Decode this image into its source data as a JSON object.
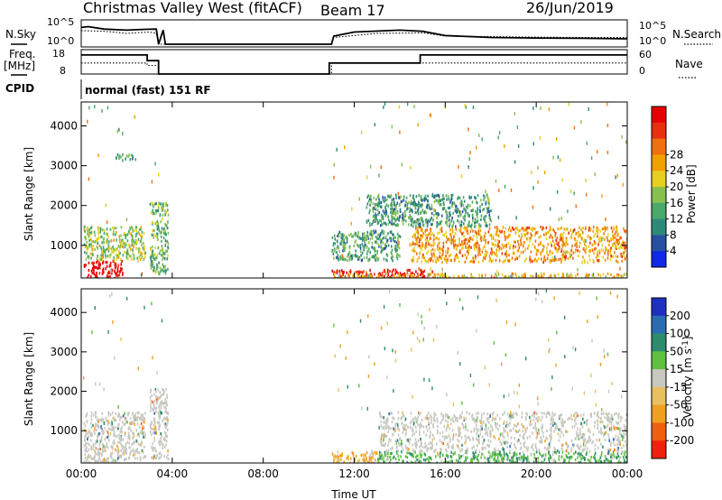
{
  "header": {
    "station": "Christmas Valley West (fitACF)",
    "beam": "Beam 17",
    "date": "26/Jun/2019"
  },
  "panel_labels": {
    "nsky": "N.Sky",
    "freq": "Freq.",
    "freq_unit": "[MHz]",
    "cpid": "CPID",
    "nsearch": "N.Search",
    "nave": "Nave",
    "cpid_text": "normal (fast) 151 RF"
  },
  "chart_data": [
    {
      "type": "line",
      "title": "",
      "name": "noise",
      "ylabel": "N.Sky",
      "ylabel_right": "N.Search",
      "y_ticks_left": [
        "10^5",
        "10^0"
      ],
      "y_ticks_right": [
        "10^5",
        "10^0"
      ],
      "xlim": [
        0,
        24
      ],
      "series": [
        {
          "name": "N.Sky",
          "style": "solid",
          "x": [
            0,
            0.3,
            1,
            2,
            2.8,
            3.3,
            3.4,
            3.6,
            3.7,
            11,
            11.1,
            12,
            14,
            15,
            16,
            18,
            20,
            22,
            24
          ],
          "y": [
            0.72,
            0.75,
            0.66,
            0.62,
            0.65,
            0.66,
            0.1,
            0.62,
            0.1,
            0.1,
            0.4,
            0.55,
            0.62,
            0.58,
            0.42,
            0.35,
            0.33,
            0.32,
            0.3
          ]
        },
        {
          "name": "N.Search",
          "style": "dotted",
          "x": [
            0,
            1,
            2,
            3,
            3.3,
            3.4,
            3.7,
            11,
            11.1,
            13,
            15,
            16,
            18,
            20,
            22,
            24
          ],
          "y": [
            0.6,
            0.58,
            0.5,
            0.55,
            0.5,
            0.1,
            0.1,
            0.1,
            0.35,
            0.5,
            0.52,
            0.4,
            0.38,
            0.36,
            0.35,
            0.35
          ]
        }
      ]
    },
    {
      "type": "line",
      "title": "",
      "name": "frequency",
      "ylabel": "Freq. [MHz]",
      "ylabel_right": "Nave",
      "y_ticks_left": [
        "18",
        "8"
      ],
      "y_ticks_right": [
        "60",
        "0"
      ],
      "xlim": [
        0,
        24
      ],
      "series": [
        {
          "name": "Freq.",
          "style": "solid",
          "x": [
            0,
            2.9,
            2.9,
            3.4,
            3.4,
            3.7,
            3.7,
            10.9,
            10.9,
            14.9,
            14.9,
            24
          ],
          "y": [
            0.78,
            0.78,
            0.55,
            0.55,
            0.0,
            0.0,
            0.0,
            0.0,
            0.45,
            0.45,
            0.78,
            0.78
          ]
        },
        {
          "name": "Nave",
          "style": "dotted",
          "x": [
            0,
            2.9,
            2.9,
            3.4,
            3.4,
            3.7,
            11,
            11,
            14.9,
            14.9,
            24
          ],
          "y": [
            0.45,
            0.45,
            0.35,
            0.35,
            0.0,
            0.0,
            0.0,
            0.45,
            0.45,
            0.45,
            0.45
          ]
        }
      ]
    },
    {
      "type": "heatmap",
      "title": "",
      "name": "power",
      "xlabel": "",
      "ylabel": "Slant Range [km]",
      "x_ticks": [
        0,
        4,
        8,
        12,
        16,
        20,
        24
      ],
      "y_ticks": [
        1000,
        2000,
        3000,
        4000
      ],
      "xlim": [
        0,
        24
      ],
      "ylim": [
        180,
        4600
      ],
      "colorbar": {
        "label": "Power [dB]",
        "ticks": [
          "4",
          "8",
          "12",
          "16",
          "20",
          "24",
          "28"
        ],
        "colors": [
          "#1028e8",
          "#2850a0",
          "#2e8a78",
          "#4aa86a",
          "#88c050",
          "#e8d020",
          "#f0a000",
          "#f07010",
          "#e83010",
          "#e80000"
        ]
      },
      "regions": [
        {
          "x0": 0.1,
          "x1": 1.8,
          "y0": 200,
          "y1": 650,
          "value": 29
        },
        {
          "x0": 0.1,
          "x1": 2.8,
          "y0": 650,
          "y1": 1500,
          "value": 14
        },
        {
          "x0": 1.5,
          "x1": 2.4,
          "y0": 3150,
          "y1": 3320,
          "value": 10
        },
        {
          "x0": 3.0,
          "x1": 3.8,
          "y0": 300,
          "y1": 2100,
          "value": 12
        },
        {
          "x0": 11.0,
          "x1": 15.5,
          "y0": 200,
          "y1": 420,
          "value": 28
        },
        {
          "x0": 11.0,
          "x1": 24.0,
          "y0": 200,
          "y1": 320,
          "value": 18
        },
        {
          "x0": 11.0,
          "x1": 14.0,
          "y0": 650,
          "y1": 1400,
          "value": 10
        },
        {
          "x0": 14.5,
          "x1": 24.0,
          "y0": 600,
          "y1": 1500,
          "value": 20
        },
        {
          "x0": 12.5,
          "x1": 18.0,
          "y0": 1500,
          "y1": 2300,
          "value": 9
        }
      ]
    },
    {
      "type": "heatmap",
      "title": "",
      "name": "velocity",
      "xlabel": "Time UT",
      "ylabel": "Slant Range [km]",
      "x_ticks": [
        0,
        4,
        8,
        12,
        16,
        20,
        24
      ],
      "x_tick_labels": [
        "00:00",
        "04:00",
        "08:00",
        "12:00",
        "16:00",
        "20:00",
        "00:00"
      ],
      "y_ticks": [
        1000,
        2000,
        3000,
        4000
      ],
      "xlim": [
        0,
        24
      ],
      "ylim": [
        180,
        4600
      ],
      "colorbar": {
        "label": "Velocity [m s^-1]",
        "ticks": [
          "200",
          "100",
          "50",
          "15",
          "-15",
          "-50",
          "-100",
          "-200"
        ],
        "colors": [
          "#1f2fc0",
          "#2a6cb0",
          "#2d8c6e",
          "#5fc040",
          "#c8c8c0",
          "#e8c060",
          "#f0a020",
          "#f06010",
          "#f02010"
        ]
      },
      "regions": [
        {
          "x0": 0.1,
          "x1": 2.8,
          "y0": 200,
          "y1": 1500,
          "value": 0
        },
        {
          "x0": 3.0,
          "x1": 3.8,
          "y0": 300,
          "y1": 2100,
          "value": 0
        },
        {
          "x0": 11.0,
          "x1": 13.0,
          "y0": 200,
          "y1": 500,
          "value": -60
        },
        {
          "x0": 13.0,
          "x1": 24.0,
          "y0": 200,
          "y1": 500,
          "value": 40
        },
        {
          "x0": 13.0,
          "x1": 24.0,
          "y0": 500,
          "y1": 1500,
          "value": 0
        }
      ]
    }
  ]
}
